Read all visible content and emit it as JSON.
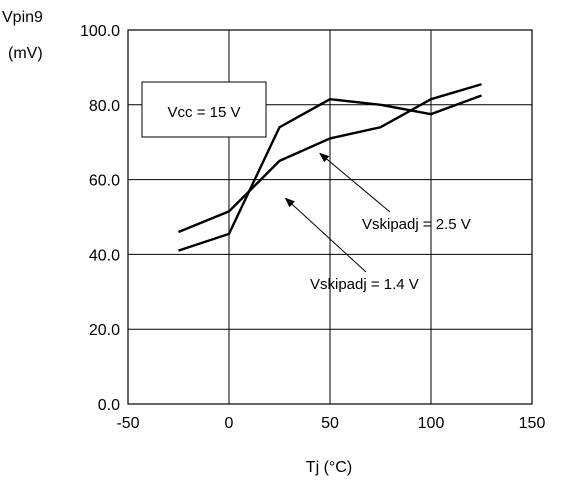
{
  "chart_data": {
    "type": "line",
    "xlabel": "Tj  (°C)",
    "ylabel": "Vpin9",
    "ylabel_unit": "(mV)",
    "xlim": [
      -50,
      150
    ],
    "ylim": [
      0,
      100
    ],
    "x_ticks": [
      "-50",
      "0",
      "50",
      "100",
      "150"
    ],
    "y_ticks": [
      "0.0",
      "20.0",
      "40.0",
      "60.0",
      "80.0",
      "100.0"
    ],
    "grid": true,
    "condition_label": "Vcc = 15 V",
    "series": [
      {
        "name": "Vskipadj = 2.5 V",
        "x": [
          -25,
          0,
          25,
          50,
          75,
          100,
          125
        ],
        "y": [
          46,
          51.5,
          65,
          71,
          74,
          81.5,
          85.5
        ]
      },
      {
        "name": "Vskipadj = 1.4 V",
        "x": [
          -25,
          0,
          25,
          50,
          75,
          100,
          125
        ],
        "y": [
          41,
          45.5,
          74,
          81.5,
          80,
          77.5,
          82.5
        ]
      }
    ],
    "annotations": [
      {
        "series": 0,
        "text": "Vskipadj = 2.5 V",
        "arrow_to": [
          45,
          67
        ]
      },
      {
        "series": 1,
        "text": "Vskipadj = 1.4 V",
        "arrow_to": [
          28,
          55
        ]
      }
    ],
    "colors": {
      "line": "#000000",
      "grid": "#000000",
      "background": "#ffffff"
    }
  }
}
